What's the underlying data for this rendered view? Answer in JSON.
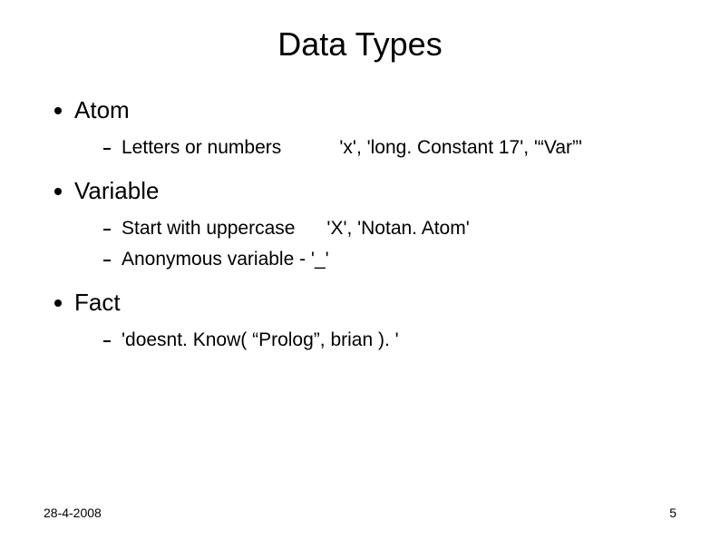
{
  "title": "Data Types",
  "items": [
    {
      "label": "Atom",
      "sub": [
        "Letters or numbers           'x', 'long. Constant 17', '“Var”'"
      ]
    },
    {
      "label": "Variable",
      "sub": [
        "Start with uppercase      'X', 'Notan. Atom'",
        "Anonymous variable - '_'"
      ]
    },
    {
      "label": "Fact",
      "sub": [
        "'doesnt. Know( “Prolog”, brian ). '"
      ]
    }
  ],
  "footer": {
    "date": "28-4-2008",
    "page": "5"
  }
}
